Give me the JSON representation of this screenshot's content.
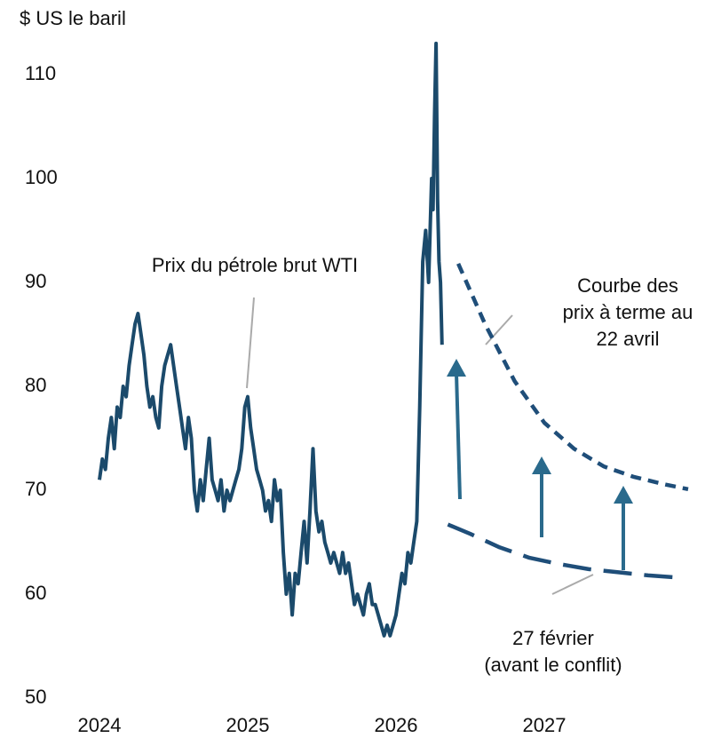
{
  "chart_data": {
    "type": "line",
    "y_label": "$ US le baril",
    "xlim": [
      2023.9,
      2028.0
    ],
    "xticks": [
      2024,
      2025,
      2026,
      2027
    ],
    "ylim": [
      50,
      113
    ],
    "yticks": [
      50,
      60,
      70,
      80,
      90,
      100,
      110
    ],
    "series": [
      {
        "color": "#1b4a6b",
        "style": "solid",
        "x": [
          2024.0,
          2024.02,
          2024.04,
          2024.06,
          2024.08,
          2024.1,
          2024.12,
          2024.14,
          2024.16,
          2024.18,
          2024.2,
          2024.22,
          2024.24,
          2024.26,
          2024.28,
          2024.3,
          2024.32,
          2024.34,
          2024.36,
          2024.38,
          2024.4,
          2024.42,
          2024.44,
          2024.46,
          2024.48,
          2024.5,
          2024.52,
          2024.54,
          2024.56,
          2024.58,
          2024.6,
          2024.62,
          2024.64,
          2024.66,
          2024.68,
          2024.7,
          2024.72,
          2024.74,
          2024.76,
          2024.78,
          2024.8,
          2024.82,
          2024.84,
          2024.86,
          2024.88,
          2024.9,
          2024.92,
          2024.94,
          2024.96,
          2024.98,
          2025.0,
          2025.02,
          2025.04,
          2025.06,
          2025.08,
          2025.1,
          2025.12,
          2025.14,
          2025.16,
          2025.18,
          2025.2,
          2025.22,
          2025.24,
          2025.26,
          2025.28,
          2025.3,
          2025.32,
          2025.34,
          2025.36,
          2025.38,
          2025.4,
          2025.42,
          2025.44,
          2025.46,
          2025.48,
          2025.5,
          2025.52,
          2025.54,
          2025.56,
          2025.58,
          2025.6,
          2025.62,
          2025.64,
          2025.66,
          2025.68,
          2025.7,
          2025.72,
          2025.74,
          2025.76,
          2025.78,
          2025.8,
          2025.82,
          2025.84,
          2025.86,
          2025.88,
          2025.9,
          2025.92,
          2025.94,
          2025.96,
          2025.98,
          2026.0,
          2026.02,
          2026.04,
          2026.06,
          2026.08,
          2026.1,
          2026.12,
          2026.14,
          2026.16,
          2026.18,
          2026.2,
          2026.22,
          2026.24,
          2026.25,
          2026.26,
          2026.27,
          2026.28,
          2026.29,
          2026.3,
          2026.31
        ],
        "values": [
          71,
          73,
          72,
          75,
          77,
          74,
          78,
          77,
          80,
          79,
          82,
          84,
          86,
          87,
          85,
          83,
          80,
          78,
          79,
          77,
          76,
          80,
          82,
          83,
          84,
          82,
          80,
          78,
          76,
          74,
          77,
          75,
          70,
          68,
          71,
          69,
          72,
          75,
          71,
          70,
          69,
          71,
          68,
          70,
          69,
          70,
          71,
          72,
          74,
          78,
          79,
          76,
          74,
          72,
          71,
          70,
          68,
          69,
          67,
          71,
          69,
          70,
          64,
          60,
          62,
          58,
          62,
          61,
          64,
          67,
          63,
          68,
          74,
          68,
          66,
          67,
          65,
          64,
          63,
          64,
          63,
          62,
          64,
          62,
          63,
          61,
          59,
          60,
          59,
          58,
          60,
          61,
          59,
          59,
          58,
          57,
          56,
          57,
          56,
          57,
          58,
          60,
          62,
          61,
          64,
          63,
          65,
          67,
          78,
          92,
          95,
          90,
          100,
          97,
          106,
          113,
          98,
          92,
          90,
          84
        ]
      },
      {
        "color": "#1f4e79",
        "style": "long-dash",
        "x": [
          2026.35,
          2026.5,
          2026.7,
          2026.9,
          2027.1,
          2027.3,
          2027.5,
          2027.7,
          2027.9
        ],
        "values": [
          66.7,
          65.8,
          64.5,
          63.5,
          62.9,
          62.4,
          62.1,
          61.8,
          61.6
        ]
      },
      {
        "color": "#1f4e79",
        "style": "short-dash",
        "x": [
          2026.42,
          2026.6,
          2026.8,
          2027.0,
          2027.2,
          2027.4,
          2027.6,
          2027.8,
          2027.97
        ],
        "values": [
          91.8,
          86,
          80.5,
          76.5,
          74,
          72.3,
          71.3,
          70.6,
          70.1
        ]
      }
    ],
    "annotations": {
      "wti": [
        "Prix du pétrole brut WTI"
      ],
      "forward_april": [
        "Courbe des",
        "prix à terme au",
        "22 avril"
      ],
      "forward_feb": [
        "27 février",
        "(avant le conflit)"
      ]
    }
  }
}
